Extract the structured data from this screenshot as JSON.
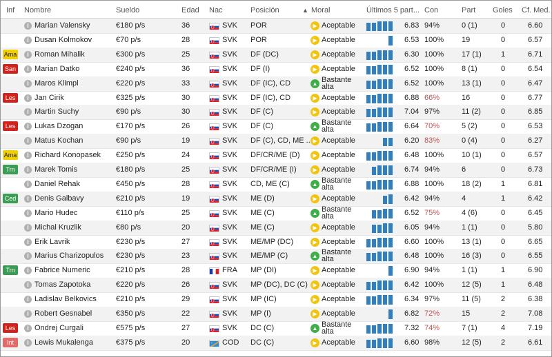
{
  "columns": {
    "inf": "Inf",
    "name": "Nombre",
    "wage": "Sueldo",
    "age": "Edad",
    "nat": "Nac",
    "pos": "Posición",
    "sort_arrow": "▲",
    "moral": "Moral",
    "form": "Últimos 5 part...",
    "cond": "Con",
    "apps": "Part",
    "goals": "Goles",
    "avg": "Cf. Med."
  },
  "colors": {
    "badge_yellow": "#f0d000",
    "badge_red": "#d3221c",
    "badge_green": "#3a9d54",
    "badge_pink": "#e36a6a",
    "moral_yellow": "#f1c40f",
    "moral_green": "#3fae49",
    "form_bar": "#2f7fc1",
    "cond_low": "#c0504d"
  },
  "players": [
    {
      "badge": "",
      "badge_color": "",
      "name": "Marian Valensky",
      "wage": "€180 p/s",
      "age": "36",
      "nat": "SVK",
      "pos": "POR",
      "moral": "Aceptable",
      "moral_icon": "yellow",
      "rating": "6.83",
      "cond": "94%",
      "cond_low": false,
      "apps": "0 (1)",
      "goals": "0",
      "avg": "6.60"
    },
    {
      "badge": "",
      "badge_color": "",
      "name": "Dusan Kolmokov",
      "wage": "€70 p/s",
      "age": "28",
      "nat": "SVK",
      "pos": "POR",
      "moral": "Aceptable",
      "moral_icon": "yellow",
      "rating": "6.53",
      "cond": "100%",
      "cond_low": false,
      "apps": "19",
      "goals": "0",
      "avg": "6.57"
    },
    {
      "badge": "Ama",
      "badge_color": "yellow",
      "name": "Roman Mihalik",
      "wage": "€300 p/s",
      "age": "25",
      "nat": "SVK",
      "pos": "DF (DC)",
      "moral": "Aceptable",
      "moral_icon": "yellow",
      "rating": "6.30",
      "cond": "100%",
      "cond_low": false,
      "apps": "17 (1)",
      "goals": "1",
      "avg": "6.71"
    },
    {
      "badge": "San",
      "badge_color": "red",
      "name": "Marian Datko",
      "wage": "€240 p/s",
      "age": "36",
      "nat": "SVK",
      "pos": "DF (I)",
      "moral": "Aceptable",
      "moral_icon": "yellow",
      "rating": "6.52",
      "cond": "100%",
      "cond_low": false,
      "apps": "8 (1)",
      "goals": "0",
      "avg": "6.54"
    },
    {
      "badge": "",
      "badge_color": "",
      "name": "Maros Klimpl",
      "wage": "€220 p/s",
      "age": "33",
      "nat": "SVK",
      "pos": "DF (IC), CD",
      "moral": "Bastante alta",
      "moral_icon": "green",
      "rating": "6.52",
      "cond": "100%",
      "cond_low": false,
      "apps": "13 (1)",
      "goals": "0",
      "avg": "6.47"
    },
    {
      "badge": "Les",
      "badge_color": "red",
      "name": "Jan Cirik",
      "wage": "€325 p/s",
      "age": "30",
      "nat": "SVK",
      "pos": "DF (IC), CD",
      "moral": "Aceptable",
      "moral_icon": "yellow",
      "rating": "6.88",
      "cond": "66%",
      "cond_low": true,
      "apps": "16",
      "goals": "0",
      "avg": "6.77"
    },
    {
      "badge": "",
      "badge_color": "",
      "name": "Martin Suchy",
      "wage": "€90 p/s",
      "age": "30",
      "nat": "SVK",
      "pos": "DF (C)",
      "moral": "Aceptable",
      "moral_icon": "yellow",
      "rating": "7.04",
      "cond": "97%",
      "cond_low": false,
      "apps": "11 (2)",
      "goals": "0",
      "avg": "6.85"
    },
    {
      "badge": "Les",
      "badge_color": "red",
      "name": "Lukas Dzogan",
      "wage": "€170 p/s",
      "age": "26",
      "nat": "SVK",
      "pos": "DF (C)",
      "moral": "Bastante alta",
      "moral_icon": "green",
      "rating": "6.64",
      "cond": "70%",
      "cond_low": true,
      "apps": "5 (2)",
      "goals": "0",
      "avg": "6.53"
    },
    {
      "badge": "",
      "badge_color": "",
      "name": "Matus Kochan",
      "wage": "€90 p/s",
      "age": "19",
      "nat": "SVK",
      "pos": "DF (C), CD, ME ...",
      "moral": "Aceptable",
      "moral_icon": "yellow",
      "rating": "6.20",
      "cond": "83%",
      "cond_low": true,
      "apps": "0 (4)",
      "goals": "0",
      "avg": "6.27"
    },
    {
      "badge": "Ama",
      "badge_color": "yellow",
      "name": "Richard Konopasek",
      "wage": "€250 p/s",
      "age": "24",
      "nat": "SVK",
      "pos": "DF/CR/ME (D)",
      "moral": "Aceptable",
      "moral_icon": "yellow",
      "rating": "6.48",
      "cond": "100%",
      "cond_low": false,
      "apps": "10 (1)",
      "goals": "0",
      "avg": "6.57"
    },
    {
      "badge": "Trn",
      "badge_color": "green",
      "name": "Marek Tomis",
      "wage": "€180 p/s",
      "age": "25",
      "nat": "SVK",
      "pos": "DF/CR/ME (I)",
      "moral": "Aceptable",
      "moral_icon": "yellow",
      "rating": "6.74",
      "cond": "94%",
      "cond_low": false,
      "apps": "6",
      "goals": "0",
      "avg": "6.73"
    },
    {
      "badge": "",
      "badge_color": "",
      "name": "Daniel Rehak",
      "wage": "€450 p/s",
      "age": "28",
      "nat": "SVK",
      "pos": "CD, ME (C)",
      "moral": "Bastante alta",
      "moral_icon": "green",
      "rating": "6.88",
      "cond": "100%",
      "cond_low": false,
      "apps": "18 (2)",
      "goals": "1",
      "avg": "6.81"
    },
    {
      "badge": "Ced",
      "badge_color": "green",
      "name": "Denis Galbavy",
      "wage": "€210 p/s",
      "age": "19",
      "nat": "SVK",
      "pos": "ME (D)",
      "moral": "Aceptable",
      "moral_icon": "yellow",
      "rating": "6.42",
      "cond": "94%",
      "cond_low": false,
      "apps": "4",
      "goals": "1",
      "avg": "6.42"
    },
    {
      "badge": "",
      "badge_color": "",
      "name": "Mario Hudec",
      "wage": "€110 p/s",
      "age": "25",
      "nat": "SVK",
      "pos": "ME (C)",
      "moral": "Bastante alta",
      "moral_icon": "green",
      "rating": "6.52",
      "cond": "75%",
      "cond_low": true,
      "apps": "4 (6)",
      "goals": "0",
      "avg": "6.45"
    },
    {
      "badge": "",
      "badge_color": "",
      "name": "Michal Kruzlik",
      "wage": "€80 p/s",
      "age": "20",
      "nat": "SVK",
      "pos": "ME (C)",
      "moral": "Aceptable",
      "moral_icon": "yellow",
      "rating": "6.05",
      "cond": "94%",
      "cond_low": false,
      "apps": "1 (1)",
      "goals": "0",
      "avg": "5.80"
    },
    {
      "badge": "",
      "badge_color": "",
      "name": "Erik Lavrik",
      "wage": "€230 p/s",
      "age": "27",
      "nat": "SVK",
      "pos": "ME/MP (DC)",
      "moral": "Aceptable",
      "moral_icon": "yellow",
      "rating": "6.60",
      "cond": "100%",
      "cond_low": false,
      "apps": "13 (1)",
      "goals": "0",
      "avg": "6.65"
    },
    {
      "badge": "",
      "badge_color": "",
      "name": "Marius Charizopulos",
      "wage": "€230 p/s",
      "age": "23",
      "nat": "SVK",
      "pos": "ME/MP (C)",
      "moral": "Bastante alta",
      "moral_icon": "green",
      "rating": "6.48",
      "cond": "100%",
      "cond_low": false,
      "apps": "16 (3)",
      "goals": "0",
      "avg": "6.55"
    },
    {
      "badge": "Trn",
      "badge_color": "green",
      "name": "Fabrice Numeric",
      "wage": "€210 p/s",
      "age": "28",
      "nat": "FRA",
      "pos": "MP (DI)",
      "moral": "Aceptable",
      "moral_icon": "yellow",
      "rating": "6.90",
      "cond": "94%",
      "cond_low": false,
      "apps": "1 (1)",
      "goals": "1",
      "avg": "6.90"
    },
    {
      "badge": "",
      "badge_color": "",
      "name": "Tomas Zapotoka",
      "wage": "€220 p/s",
      "age": "26",
      "nat": "SVK",
      "pos": "MP (DC), DC (C)",
      "moral": "Aceptable",
      "moral_icon": "yellow",
      "rating": "6.42",
      "cond": "100%",
      "cond_low": false,
      "apps": "12 (5)",
      "goals": "1",
      "avg": "6.48"
    },
    {
      "badge": "",
      "badge_color": "",
      "name": "Ladislav Belkovics",
      "wage": "€210 p/s",
      "age": "29",
      "nat": "SVK",
      "pos": "MP (IC)",
      "moral": "Aceptable",
      "moral_icon": "yellow",
      "rating": "6.34",
      "cond": "97%",
      "cond_low": false,
      "apps": "11 (5)",
      "goals": "2",
      "avg": "6.38"
    },
    {
      "badge": "",
      "badge_color": "",
      "name": "Robert Gesnabel",
      "wage": "€350 p/s",
      "age": "22",
      "nat": "SVK",
      "pos": "MP (I)",
      "moral": "Aceptable",
      "moral_icon": "yellow",
      "rating": "6.82",
      "cond": "72%",
      "cond_low": true,
      "apps": "15",
      "goals": "2",
      "avg": "7.08"
    },
    {
      "badge": "Les",
      "badge_color": "red",
      "name": "Ondrej Curgali",
      "wage": "€575 p/s",
      "age": "27",
      "nat": "SVK",
      "pos": "DC (C)",
      "moral": "Bastante alta",
      "moral_icon": "green",
      "rating": "7.32",
      "cond": "74%",
      "cond_low": true,
      "apps": "7 (1)",
      "goals": "4",
      "avg": "7.19"
    },
    {
      "badge": "Int",
      "badge_color": "pink",
      "name": "Lewis Mukalenga",
      "wage": "€375 p/s",
      "age": "20",
      "nat": "COD",
      "pos": "DC (C)",
      "moral": "Aceptable",
      "moral_icon": "yellow",
      "rating": "6.60",
      "cond": "98%",
      "cond_low": false,
      "apps": "12 (5)",
      "goals": "2",
      "avg": "6.61"
    }
  ]
}
